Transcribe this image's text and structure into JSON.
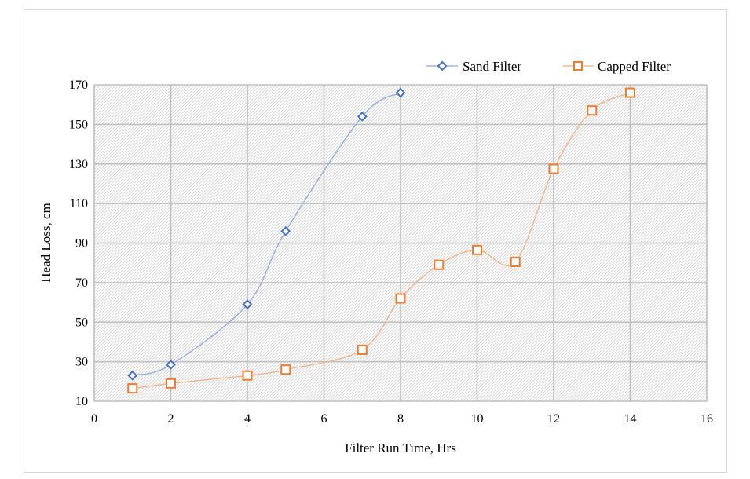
{
  "chart_data": {
    "type": "scatter",
    "title": "",
    "xlabel": "Filter Run Time, Hrs",
    "ylabel": "Head Loss, cm",
    "xlim": [
      0,
      16
    ],
    "ylim": [
      10,
      170
    ],
    "xticks": [
      0,
      2,
      4,
      6,
      8,
      10,
      12,
      14,
      16
    ],
    "yticks": [
      10,
      30,
      50,
      70,
      90,
      110,
      130,
      150,
      170
    ],
    "grid": true,
    "legend_position": "top-right",
    "series": [
      {
        "name": "Sand Filter",
        "marker": "diamond",
        "color": "#4472c4",
        "line_color": "#8faadc",
        "x": [
          1,
          2,
          4,
          5,
          7,
          8
        ],
        "y": [
          23,
          28.5,
          59,
          96,
          154,
          166
        ]
      },
      {
        "name": "Capped Filter",
        "marker": "square",
        "color": "#ed7d31",
        "line_color": "#f4b183",
        "x": [
          1,
          2,
          4,
          5,
          7,
          8,
          9,
          10,
          11,
          12,
          13,
          14
        ],
        "y": [
          16.5,
          19,
          23,
          26,
          36,
          62,
          79,
          86.5,
          80.5,
          127.5,
          157,
          166
        ]
      }
    ]
  }
}
